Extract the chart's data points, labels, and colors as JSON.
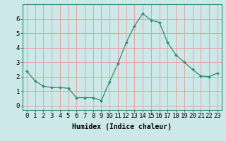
{
  "x": [
    0,
    1,
    2,
    3,
    4,
    5,
    6,
    7,
    8,
    9,
    10,
    11,
    12,
    13,
    14,
    15,
    16,
    17,
    18,
    19,
    20,
    21,
    22,
    23
  ],
  "y": [
    2.4,
    1.7,
    1.35,
    1.25,
    1.25,
    1.2,
    0.55,
    0.55,
    0.55,
    0.35,
    1.65,
    2.9,
    4.35,
    5.5,
    6.35,
    5.9,
    5.75,
    4.35,
    3.5,
    3.0,
    2.5,
    2.05,
    2.0,
    2.25
  ],
  "line_color": "#2e8b72",
  "marker": "D",
  "marker_size": 2,
  "bg_color": "#cce8e8",
  "grid_color": "#e8a0a0",
  "xlabel": "Humidex (Indice chaleur)",
  "xlim": [
    -0.5,
    23.5
  ],
  "ylim": [
    -0.3,
    7.0
  ],
  "yticks": [
    0,
    1,
    2,
    3,
    4,
    5,
    6
  ],
  "xticks": [
    0,
    1,
    2,
    3,
    4,
    5,
    6,
    7,
    8,
    9,
    10,
    11,
    12,
    13,
    14,
    15,
    16,
    17,
    18,
    19,
    20,
    21,
    22,
    23
  ],
  "xlabel_fontsize": 7,
  "tick_fontsize": 6.5
}
